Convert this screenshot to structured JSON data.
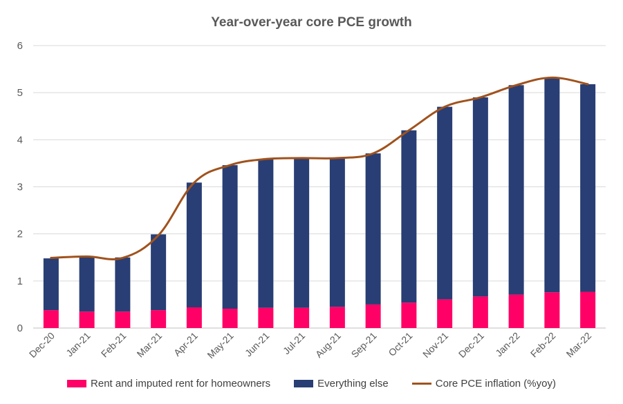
{
  "chart_data": {
    "type": "bar",
    "stacked": true,
    "title": "Year-over-year core PCE growth",
    "xlabel": "",
    "ylabel": "",
    "ylim": [
      0,
      6
    ],
    "yticks": [
      0,
      1,
      2,
      3,
      4,
      5,
      6
    ],
    "grid": true,
    "legend_position": "bottom",
    "categories": [
      "Dec-20",
      "Jan-21",
      "Feb-21",
      "Mar-21",
      "Apr-21",
      "May-21",
      "Jun-21",
      "Jul-21",
      "Aug-21",
      "Sep-21",
      "Oct-21",
      "Nov-21",
      "Dec-21",
      "Jan-22",
      "Feb-22",
      "Mar-22"
    ],
    "series": [
      {
        "name": "Rent and imputed rent for homeowners",
        "kind": "bar",
        "color": "#ff0066",
        "values": [
          0.38,
          0.35,
          0.35,
          0.38,
          0.44,
          0.41,
          0.43,
          0.43,
          0.45,
          0.5,
          0.54,
          0.61,
          0.67,
          0.71,
          0.76,
          0.77
        ]
      },
      {
        "name": "Everything else",
        "kind": "bar",
        "color": "#283e74",
        "values": [
          1.1,
          1.17,
          1.15,
          1.61,
          2.65,
          3.05,
          3.16,
          3.17,
          3.16,
          3.21,
          3.66,
          4.09,
          4.23,
          4.45,
          4.56,
          4.41
        ]
      },
      {
        "name": "Core PCE inflation (%yoy)",
        "kind": "line",
        "color": "#a0521d",
        "values": [
          1.49,
          1.52,
          1.49,
          1.97,
          3.09,
          3.46,
          3.59,
          3.61,
          3.61,
          3.71,
          4.2,
          4.7,
          4.9,
          5.16,
          5.32,
          5.18
        ]
      }
    ]
  }
}
